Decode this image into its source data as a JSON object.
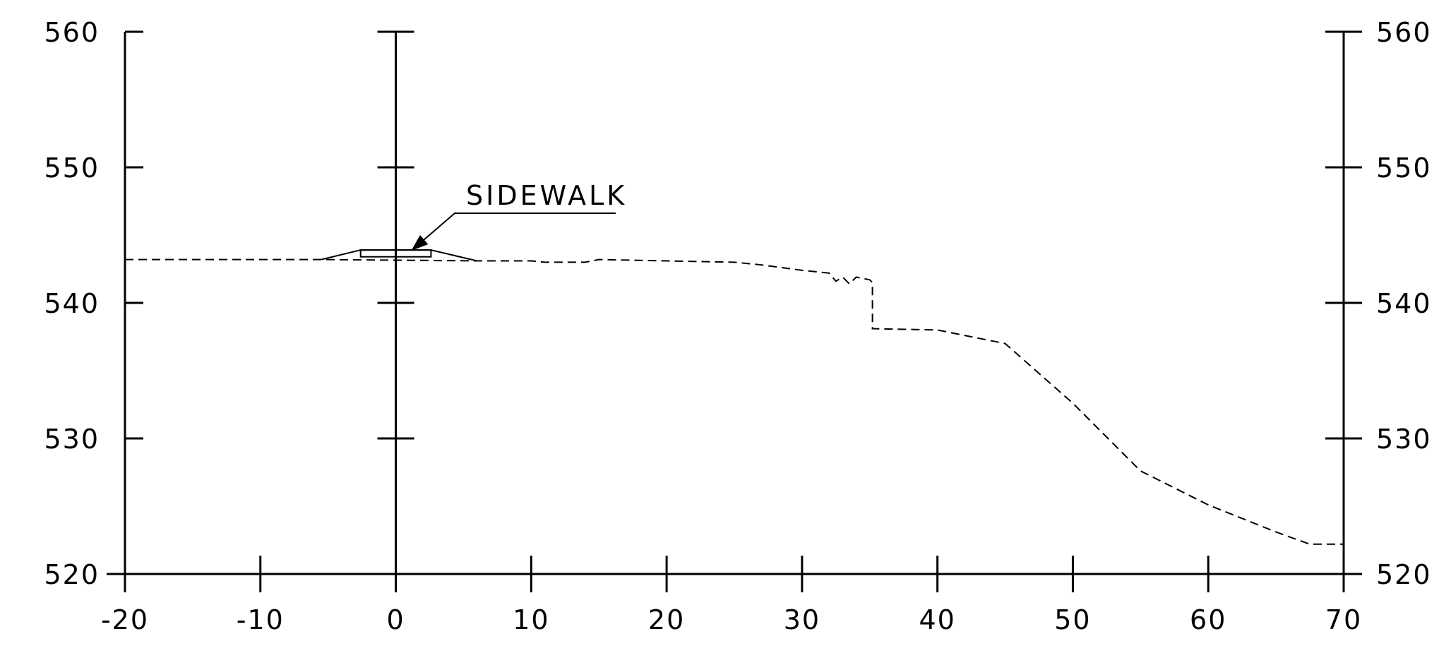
{
  "chart_data": {
    "type": "line",
    "title": "",
    "xlabel": "",
    "ylabel": "",
    "xlim": [
      -20,
      70
    ],
    "ylim": [
      520,
      560
    ],
    "x_ticks": [
      -20,
      -10,
      0,
      10,
      20,
      30,
      40,
      50,
      60,
      70
    ],
    "x_tick_labels": [
      "-20",
      "-10",
      "0",
      "10",
      "20",
      "30",
      "40",
      "50",
      "60",
      "70"
    ],
    "y_ticks": [
      520,
      530,
      540,
      550,
      560
    ],
    "y_tick_labels": [
      "520",
      "530",
      "540",
      "550",
      "560"
    ],
    "grid": false,
    "annotations": [
      {
        "text": "SIDEWALK",
        "points_to": [
          1.2,
          543.9
        ]
      }
    ],
    "series": [
      {
        "style": "dashed",
        "x": [
          -20,
          -5.5,
          6,
          10,
          11,
          14,
          15,
          20,
          25,
          27,
          30,
          32,
          32.5,
          33,
          33.5,
          34,
          35,
          35.2,
          35.2,
          40,
          45,
          50,
          55,
          60,
          65,
          67.5,
          70
        ],
        "y": [
          543.2,
          543.2,
          543.1,
          543.1,
          543.0,
          543.0,
          543.2,
          543.1,
          543.0,
          542.8,
          542.4,
          542.2,
          541.6,
          541.9,
          541.4,
          541.9,
          541.7,
          541.5,
          538.1,
          538.0,
          537.0,
          532.6,
          527.6,
          525.1,
          523.1,
          522.2,
          522.2
        ]
      },
      {
        "style": "solid",
        "x": [
          -5.5,
          -2.6,
          2.6,
          6
        ],
        "y": [
          543.2,
          543.9,
          543.9,
          543.1
        ]
      },
      {
        "style": "solid-rect",
        "x": [
          -2.6,
          2.6
        ],
        "y": [
          543.4,
          543.9
        ]
      }
    ]
  }
}
